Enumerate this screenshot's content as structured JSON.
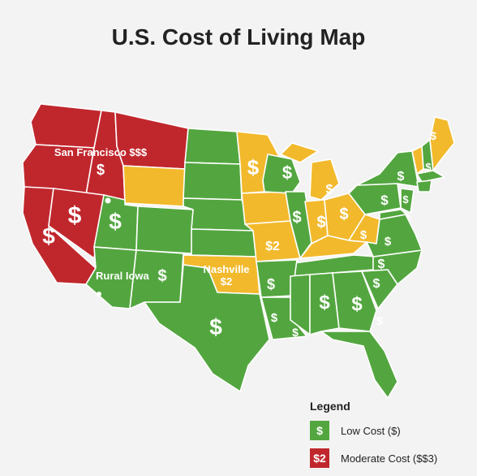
{
  "title": "U.S. Cost of Living Map",
  "colors": {
    "low": "#53a63f",
    "moderate": "#f2b92c",
    "high": "#c0272d",
    "border": "#ffffff",
    "background": "#f3f3f3"
  },
  "map_labels": {
    "san_francisco": "San Francisco $$$",
    "rural_iowa": "Rural Iowa",
    "nashville": "Nashville",
    "nashville_value": "$2",
    "missouri_value": "$2",
    "dollar": "$"
  },
  "legend": {
    "title": "Legend",
    "items": [
      {
        "swatch": "$",
        "label": "Low Cost ($)",
        "color": "#53a63f"
      },
      {
        "swatch": "$2",
        "label": "Moderate Cost ($$3)",
        "color": "#c0272d"
      }
    ]
  }
}
